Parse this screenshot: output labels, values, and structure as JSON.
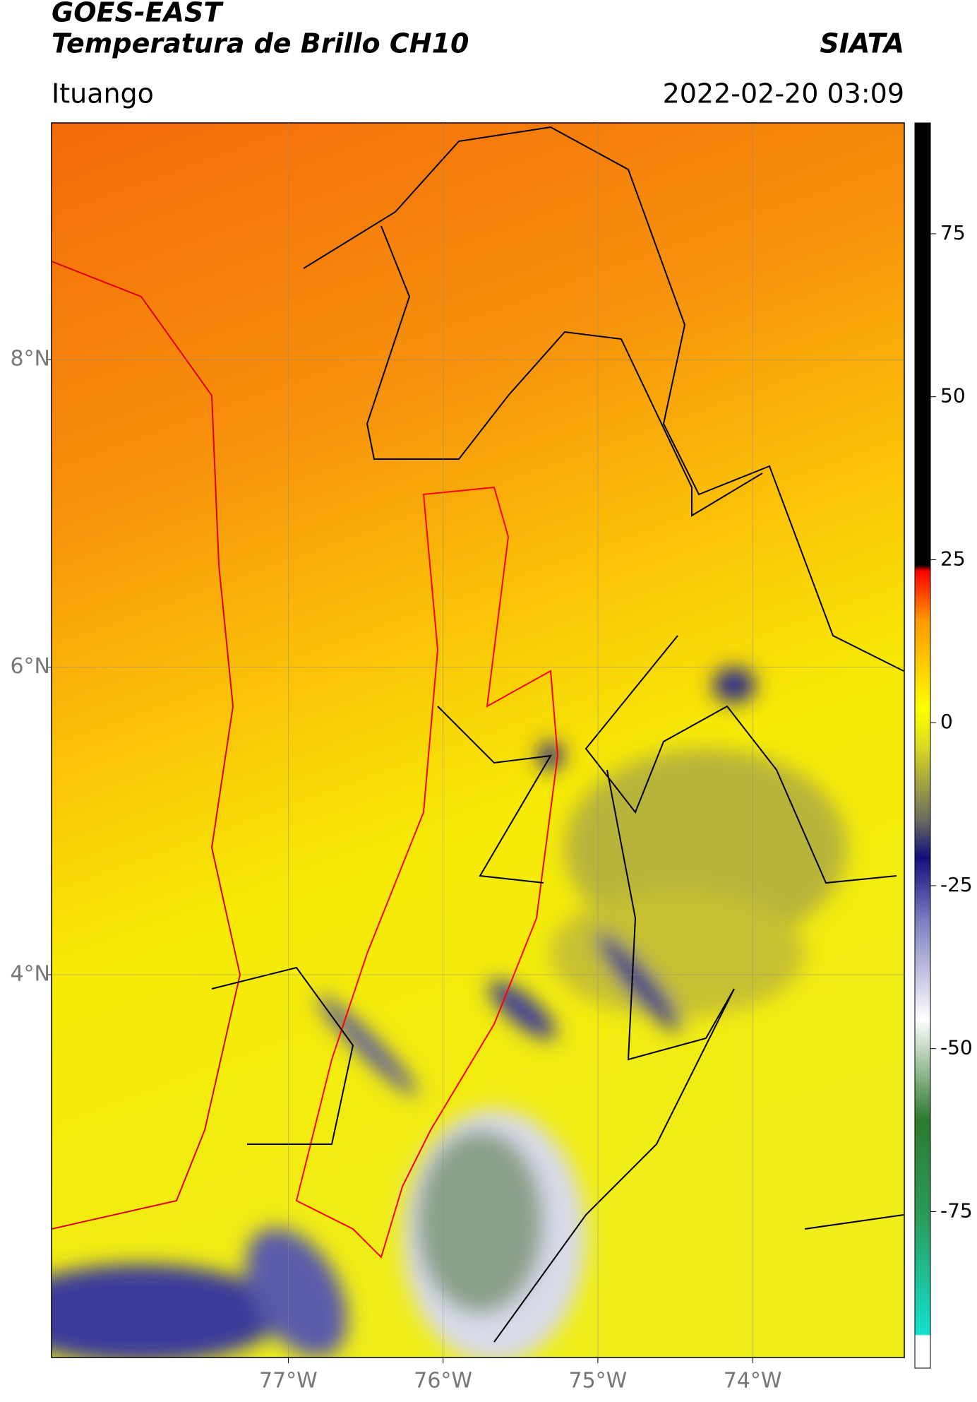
{
  "header": {
    "title": "GOES-EAST",
    "subtitle": "Temperatura de Brillo CH10",
    "source": "SIATA",
    "location": "Ituango",
    "timestamp": "2022-02-20 03:09"
  },
  "map": {
    "xlim": [
      -78.53,
      -73.02
    ],
    "ylim": [
      1.51,
      9.54
    ],
    "xticks": [
      {
        "value": -77,
        "label": "77°W"
      },
      {
        "value": -76,
        "label": "76°W"
      },
      {
        "value": -75,
        "label": "75°W"
      },
      {
        "value": -74,
        "label": "74°W"
      }
    ],
    "yticks": [
      {
        "value": 8,
        "label": "8°N"
      },
      {
        "value": 6,
        "label": "6°N"
      },
      {
        "value": 4,
        "label": "4°N"
      }
    ],
    "grid": true
  },
  "colorbar": {
    "lim": [
      -99,
      92
    ],
    "ticks": [
      75,
      50,
      25,
      0,
      -25,
      -50,
      -75
    ]
  }
}
